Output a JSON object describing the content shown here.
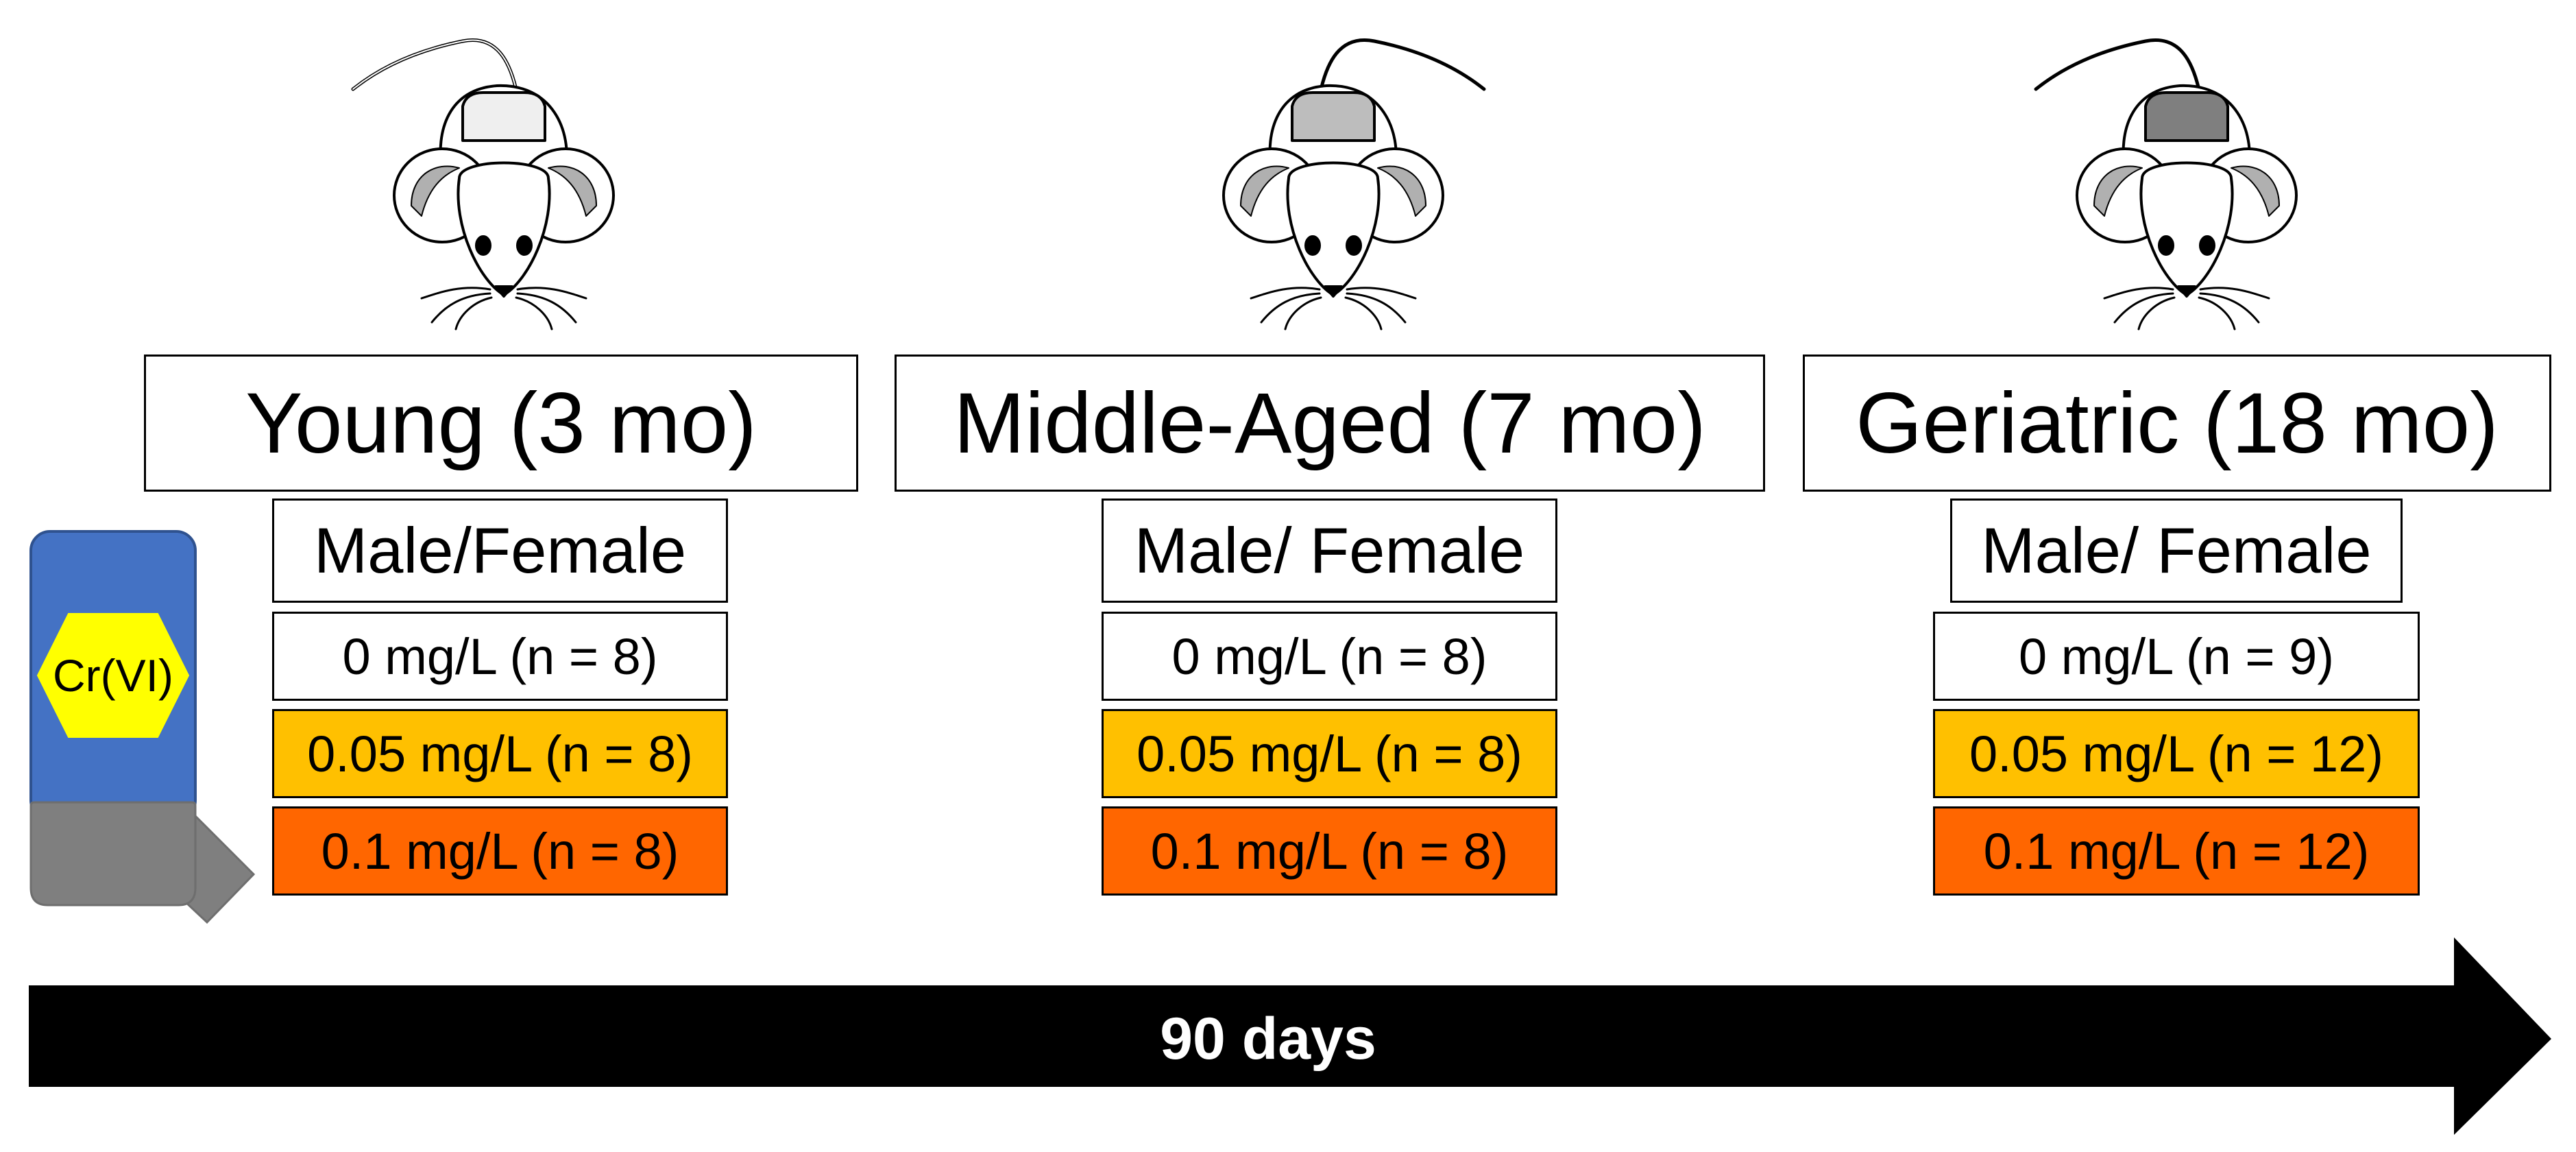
{
  "groups": [
    {
      "title": "Young (3 mo)",
      "sex": "Male/Female",
      "doses": [
        "0 mg/L (n = 8)",
        "0.05 mg/L (n = 8)",
        "0.1 mg/L (n = 8)"
      ],
      "mouse_patch_color": "#EFEFEF"
    },
    {
      "title": "Middle-Aged (7 mo)",
      "sex": "Male/ Female",
      "doses": [
        "0 mg/L (n = 8)",
        "0.05 mg/L (n = 8)",
        "0.1 mg/L (n = 8)"
      ],
      "mouse_patch_color": "#BDBDBD"
    },
    {
      "title": "Geriatric (18 mo)",
      "sex": "Male/ Female",
      "doses": [
        "0 mg/L (n = 9)",
        "0.05 mg/L (n = 12)",
        "0.1 mg/L (n = 12)"
      ],
      "mouse_patch_color": "#7F7F7F"
    }
  ],
  "bottle": {
    "label": "Cr(VI)",
    "body_color": "#4472C4",
    "cap_color": "#7F7F7F",
    "label_color": "#FFFF00"
  },
  "timeline": {
    "label": "90 days",
    "color": "#000000"
  },
  "dose_colors": {
    "control": "#FFFFFF",
    "low": "#FFC000",
    "high": "#FF6600"
  }
}
